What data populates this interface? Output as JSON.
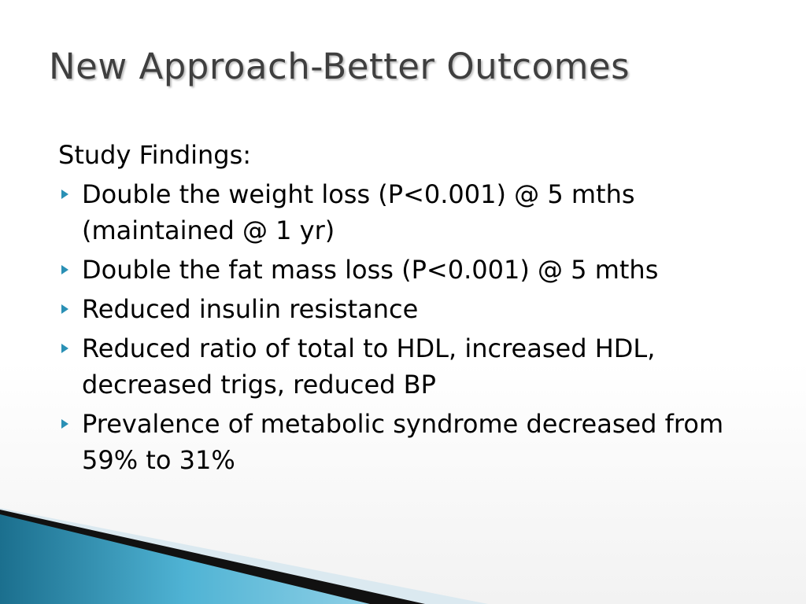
{
  "slide": {
    "title": "New Approach-Better Outcomes",
    "intro": "Study Findings:",
    "bullets": [
      "Double the weight loss (P<0.001) @ 5 mths (maintained @ 1 yr)",
      "Double the fat mass loss (P<0.001) @ 5 mths",
      "Reduced insulin resistance",
      "Reduced ratio of total to HDL, increased HDL, decreased trigs, reduced BP",
      "Prevalence of metabolic syndrome decreased from 59% to 31%"
    ]
  }
}
